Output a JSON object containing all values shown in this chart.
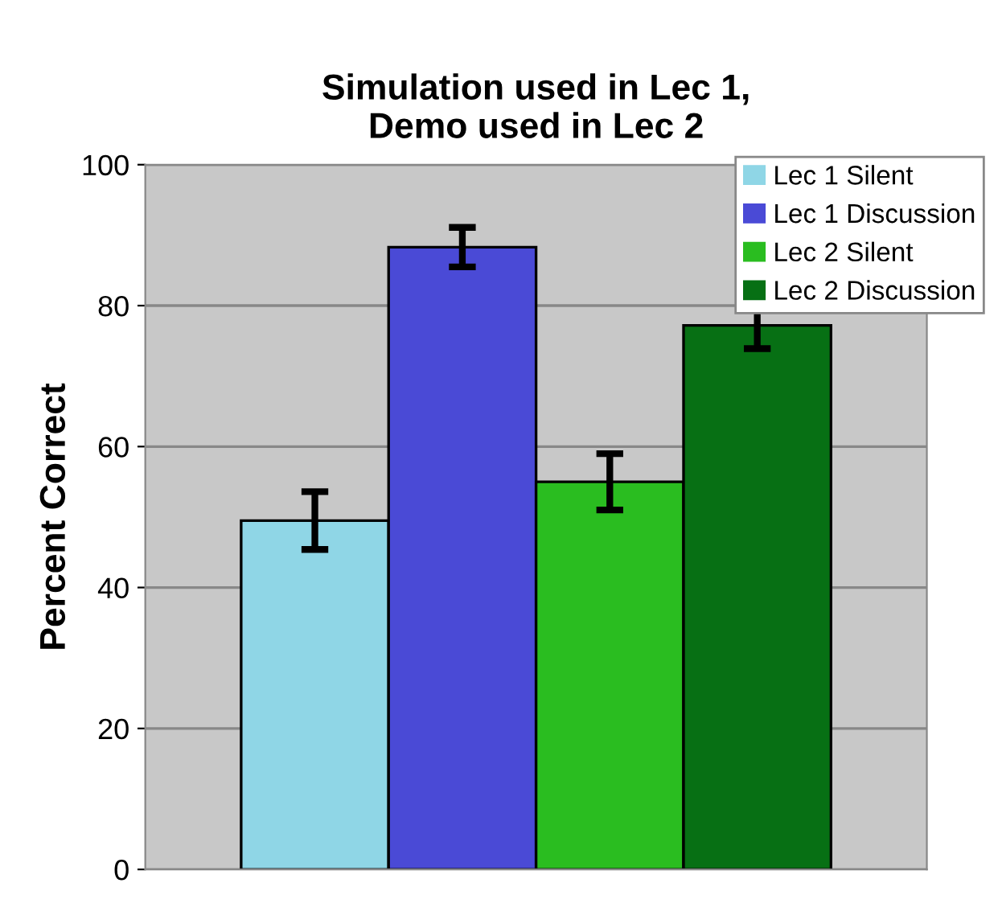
{
  "chart_data": {
    "type": "bar",
    "title": "Simulation used in Lec 1,\nDemo used in Lec 2",
    "ylabel": "Percent Correct",
    "categories": [
      null
    ],
    "series": [
      {
        "name": "Lec 1 Silent",
        "color": "#8fd6e6",
        "values": [
          49.5
        ],
        "errors": [
          4.1
        ]
      },
      {
        "name": "Lec 1 Discussion",
        "color": "#4a4ad6",
        "values": [
          88.3
        ],
        "errors": [
          2.8
        ]
      },
      {
        "name": "Lec 2 Silent",
        "color": "#2abd20",
        "values": [
          55.0
        ],
        "errors": [
          4.0
        ]
      },
      {
        "name": "Lec 2 Discussion",
        "color": "#077014",
        "values": [
          77.2
        ],
        "errors": [
          3.3
        ]
      }
    ],
    "ylim": [
      0,
      100
    ],
    "yticks": [
      0,
      20,
      40,
      60,
      80,
      100
    ],
    "grid": "y",
    "legend": "top right"
  }
}
